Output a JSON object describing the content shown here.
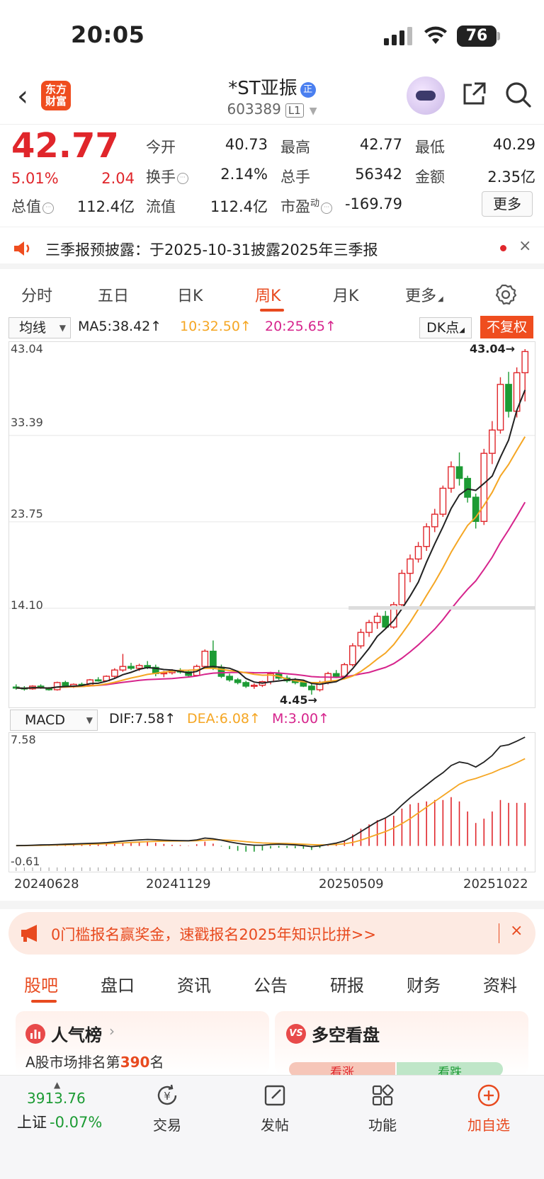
{
  "status_bar": {
    "time": "20:05",
    "battery": "76"
  },
  "header": {
    "back": "‹",
    "logo": "东方财富",
    "stock_name": "*ST亚振",
    "name_badge": "正",
    "stock_code": "603389",
    "level": "L1"
  },
  "quote": {
    "price": "42.77",
    "change_pct": "5.01%",
    "change_amt": "2.04",
    "open_label": "今开",
    "open": "40.73",
    "high_label": "最高",
    "high": "42.77",
    "low_label": "最低",
    "low": "40.29",
    "turnover_label": "换手",
    "turnover": "2.14%",
    "volume_label": "总手",
    "volume": "56342",
    "amount_label": "金额",
    "amount": "2.35亿",
    "mktcap_label": "总值",
    "mktcap": "112.4亿",
    "float_label": "流值",
    "float_cap": "112.4亿",
    "pe_label": "市盈",
    "pe_sup": "动",
    "pe": "-169.79",
    "more_button": "更多"
  },
  "notice": {
    "text": "三季报预披露：于2025-10-31披露2025年三季报",
    "close": "×"
  },
  "period_tabs": [
    "分时",
    "五日",
    "日K",
    "周K",
    "月K",
    "更多"
  ],
  "active_period": "周K",
  "ma_bar": {
    "selector": "均线",
    "ma5": "MA5:38.42↑",
    "ma10": "10:32.50↑",
    "ma20": "20:25.65↑",
    "dk": "DK点",
    "fuquan": "不复权"
  },
  "colors": {
    "up": "#e0262b",
    "down": "#1c9b34",
    "ma5": "#222222",
    "ma10": "#f5a623",
    "ma20": "#d6248c",
    "accent": "#e84a1f"
  },
  "kline_axis": {
    "y_labels": [
      "43.04",
      "33.39",
      "23.75",
      "14.10"
    ],
    "max_label": "43.04→",
    "min_label": "4.45→"
  },
  "macd_bar": {
    "selector": "MACD",
    "dif": "DIF:7.58↑",
    "dea": "DEA:6.08↑",
    "m": "M:3.00↑"
  },
  "macd_axis": {
    "top": "7.58",
    "bottom": "-0.61"
  },
  "date_axis": [
    "20240628",
    "20241129",
    "20250509",
    "20251022"
  ],
  "promo": {
    "text": "0门槛报名赢奖金，速戳报名2025年知识比拼>>",
    "close": "×"
  },
  "content_tabs": [
    "股吧",
    "盘口",
    "资讯",
    "公告",
    "研报",
    "财务",
    "资料"
  ],
  "active_content_tab": "股吧",
  "cards": {
    "hot_title": "人气榜",
    "hot_sub_prefix": "A股市场排名第",
    "hot_rank": "390",
    "hot_sub_suffix": "名",
    "vs_icon": "VS",
    "vs_title": "多空看盘",
    "bull": "看涨",
    "bear": "看跌"
  },
  "bottom_nav": {
    "index_value": "3913.76",
    "index_name": "上证",
    "index_change": "-0.07%",
    "items": [
      {
        "label": "交易",
        "icon": "yuan-exchange-icon"
      },
      {
        "label": "发帖",
        "icon": "compose-icon"
      },
      {
        "label": "功能",
        "icon": "grid-icon"
      },
      {
        "label": "加自选",
        "icon": "add-circle-icon"
      }
    ]
  },
  "chart_data": {
    "type": "candlestick",
    "ma_values": {
      "MA5": 38.42,
      "MA10": 32.5,
      "MA20": 25.65
    },
    "y_ticks": [
      43.04,
      33.39,
      23.75,
      14.1
    ],
    "ylim": [
      3.5,
      43.04
    ],
    "max_marker": 43.04,
    "min_marker": 4.45,
    "x_ticks": [
      "20240628",
      "20241129",
      "20250509",
      "20251022"
    ],
    "candles": [
      [
        5.3,
        5.6,
        5.0,
        5.2
      ],
      [
        5.2,
        5.4,
        4.9,
        5.1
      ],
      [
        5.1,
        5.5,
        5.0,
        5.4
      ],
      [
        5.4,
        5.6,
        5.1,
        5.2
      ],
      [
        5.2,
        5.3,
        4.9,
        5.0
      ],
      [
        5.0,
        5.9,
        4.9,
        5.8
      ],
      [
        5.8,
        6.0,
        5.3,
        5.4
      ],
      [
        5.4,
        5.7,
        5.2,
        5.6
      ],
      [
        5.6,
        5.8,
        5.4,
        5.5
      ],
      [
        5.5,
        6.2,
        5.4,
        6.1
      ],
      [
        6.1,
        6.4,
        5.9,
        6.0
      ],
      [
        6.0,
        6.6,
        5.9,
        6.5
      ],
      [
        6.5,
        7.4,
        6.3,
        7.2
      ],
      [
        7.2,
        9.0,
        7.0,
        7.6
      ],
      [
        7.6,
        8.0,
        7.2,
        7.4
      ],
      [
        7.4,
        7.9,
        7.1,
        7.7
      ],
      [
        7.7,
        8.2,
        7.3,
        7.5
      ],
      [
        7.5,
        7.8,
        6.5,
        6.8
      ],
      [
        6.8,
        7.1,
        6.4,
        6.9
      ],
      [
        6.9,
        7.3,
        6.7,
        7.1
      ],
      [
        7.1,
        7.4,
        6.8,
        7.0
      ],
      [
        7.0,
        7.2,
        6.4,
        6.6
      ],
      [
        6.6,
        7.8,
        6.5,
        7.6
      ],
      [
        7.6,
        9.5,
        7.4,
        9.3
      ],
      [
        9.3,
        10.5,
        7.2,
        7.5
      ],
      [
        7.5,
        7.8,
        6.3,
        6.5
      ],
      [
        6.5,
        6.8,
        5.9,
        6.1
      ],
      [
        6.1,
        6.3,
        5.6,
        5.8
      ],
      [
        5.8,
        6.0,
        5.2,
        5.4
      ],
      [
        5.4,
        5.7,
        5.1,
        5.5
      ],
      [
        5.5,
        6.0,
        5.3,
        5.9
      ],
      [
        5.9,
        7.0,
        5.6,
        6.8
      ],
      [
        6.8,
        7.2,
        6.1,
        6.3
      ],
      [
        6.3,
        6.6,
        5.8,
        6.0
      ],
      [
        6.0,
        6.3,
        5.6,
        5.8
      ],
      [
        5.8,
        6.0,
        5.3,
        5.4
      ],
      [
        5.4,
        5.7,
        4.45,
        5.0
      ],
      [
        5.0,
        6.0,
        4.8,
        5.8
      ],
      [
        5.8,
        7.0,
        5.6,
        6.8
      ],
      [
        6.8,
        7.2,
        6.3,
        6.5
      ],
      [
        6.5,
        8.0,
        6.3,
        7.8
      ],
      [
        7.8,
        10.2,
        7.6,
        9.9
      ],
      [
        9.9,
        11.8,
        9.6,
        11.4
      ],
      [
        11.4,
        12.8,
        10.9,
        12.5
      ],
      [
        12.5,
        13.6,
        11.8,
        13.2
      ],
      [
        13.2,
        13.8,
        11.8,
        12.0
      ],
      [
        12.0,
        14.8,
        11.8,
        14.5
      ],
      [
        14.5,
        18.4,
        14.3,
        18.0
      ],
      [
        18.0,
        20.1,
        17.0,
        19.6
      ],
      [
        19.6,
        21.5,
        19.2,
        21.0
      ],
      [
        21.0,
        23.6,
        20.5,
        23.2
      ],
      [
        23.2,
        25.2,
        22.6,
        24.6
      ],
      [
        24.6,
        27.8,
        24.3,
        27.5
      ],
      [
        27.5,
        30.5,
        27.0,
        29.9
      ],
      [
        29.9,
        31.5,
        27.8,
        28.6
      ],
      [
        28.6,
        28.9,
        25.9,
        26.5
      ],
      [
        26.5,
        26.9,
        23.0,
        23.8
      ],
      [
        23.8,
        31.9,
        23.4,
        31.4
      ],
      [
        31.4,
        35.0,
        30.2,
        34.0
      ],
      [
        34.0,
        39.9,
        33.6,
        39.1
      ],
      [
        39.1,
        40.5,
        35.4,
        36.1
      ],
      [
        36.1,
        41.0,
        35.4,
        40.4
      ],
      [
        40.4,
        43.04,
        37.2,
        42.77
      ]
    ]
  },
  "macd_data": {
    "dif_last": 7.58,
    "dea_last": 6.08,
    "m_last": 3.0,
    "ylim": [
      -0.61,
      7.58
    ],
    "dif": [
      0.02,
      0.03,
      0.05,
      0.07,
      0.08,
      0.1,
      0.12,
      0.14,
      0.16,
      0.18,
      0.2,
      0.23,
      0.28,
      0.33,
      0.38,
      0.42,
      0.45,
      0.43,
      0.4,
      0.38,
      0.37,
      0.36,
      0.42,
      0.55,
      0.5,
      0.4,
      0.28,
      0.18,
      0.1,
      0.05,
      0.05,
      0.1,
      0.12,
      0.1,
      0.07,
      0.02,
      -0.05,
      0.0,
      0.1,
      0.2,
      0.35,
      0.65,
      1.0,
      1.35,
      1.7,
      1.95,
      2.3,
      2.85,
      3.35,
      3.8,
      4.25,
      4.7,
      5.1,
      5.6,
      5.85,
      5.75,
      5.5,
      5.85,
      6.3,
      6.95,
      7.05,
      7.3,
      7.58
    ],
    "dea": [
      0.02,
      0.02,
      0.03,
      0.04,
      0.05,
      0.06,
      0.07,
      0.09,
      0.1,
      0.12,
      0.13,
      0.15,
      0.18,
      0.21,
      0.24,
      0.27,
      0.3,
      0.32,
      0.33,
      0.34,
      0.34,
      0.35,
      0.36,
      0.4,
      0.42,
      0.42,
      0.39,
      0.35,
      0.3,
      0.25,
      0.21,
      0.19,
      0.18,
      0.17,
      0.15,
      0.12,
      0.09,
      0.07,
      0.08,
      0.1,
      0.15,
      0.25,
      0.4,
      0.6,
      0.8,
      1.0,
      1.25,
      1.55,
      1.9,
      2.3,
      2.7,
      3.1,
      3.5,
      3.9,
      4.3,
      4.55,
      4.7,
      4.9,
      5.1,
      5.35,
      5.55,
      5.8,
      6.08
    ]
  }
}
